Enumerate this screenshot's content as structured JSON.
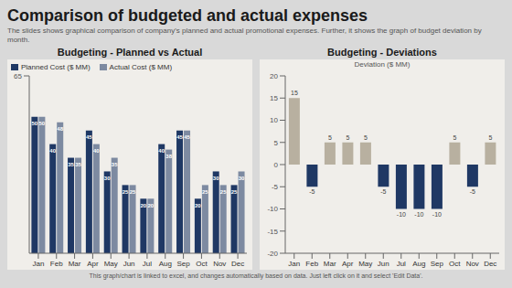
{
  "title": "Comparison of budgeted and actual expenses",
  "subtitle": "The slides shows graphical comparison of company's planned and actual promotional expenses. Further, it shows the graph of budget deviation by month.",
  "annotations": [
    "This graph/chart is linked to excel, and changes automatically based on data. Just left click on it and select 'Edit Data'."
  ],
  "chart_data": [
    {
      "type": "bar",
      "title": "Budgeting - Planned vs Actual",
      "categories": [
        "Jan",
        "Feb",
        "Mar",
        "Apr",
        "May",
        "Jun",
        "Jul",
        "Aug",
        "Sep",
        "Oct",
        "Nov",
        "Dec"
      ],
      "series": [
        {
          "name": "Planned Cost ($ MM)",
          "color": "#1f3864",
          "values": [
            50,
            40,
            35,
            45,
            30,
            25,
            20,
            40,
            45,
            20,
            30,
            25
          ]
        },
        {
          "name": "Actual Cost ($ MM)",
          "color": "#1f3864",
          "values": [
            50,
            48,
            35,
            40,
            35,
            25,
            20,
            38,
            45,
            25,
            25,
            30
          ]
        }
      ],
      "ylim": [
        0,
        65
      ],
      "yticks": [
        65
      ],
      "legend": "upper left",
      "data_labels": true,
      "grid": false
    },
    {
      "type": "bar",
      "title": "Budgeting - Deviations",
      "annotations": [
        "Deviation ($ MM)"
      ],
      "categories": [
        "Jan",
        "Feb",
        "Mar",
        "Apr",
        "May",
        "Jun",
        "Jul",
        "Aug",
        "Sep",
        "Oct",
        "Nov",
        "Dec"
      ],
      "values": [
        15,
        -5,
        5,
        5,
        5,
        -5,
        -10,
        -10,
        -10,
        5,
        -5,
        5
      ],
      "colors": [
        "#b8b0a0",
        "#1f3864",
        "#b8b0a0",
        "#b8b0a0",
        "#b8b0a0",
        "#1f3864",
        "#1f3864",
        "#1f3864",
        "#1f3864",
        "#b8b0a0",
        "#1f3864",
        "#b8b0a0"
      ],
      "ylim": [
        -20,
        20
      ],
      "yticks": [
        -20,
        -15,
        -10,
        -5,
        0,
        5,
        10,
        15,
        20
      ],
      "data_labels": true,
      "grid": false
    }
  ]
}
